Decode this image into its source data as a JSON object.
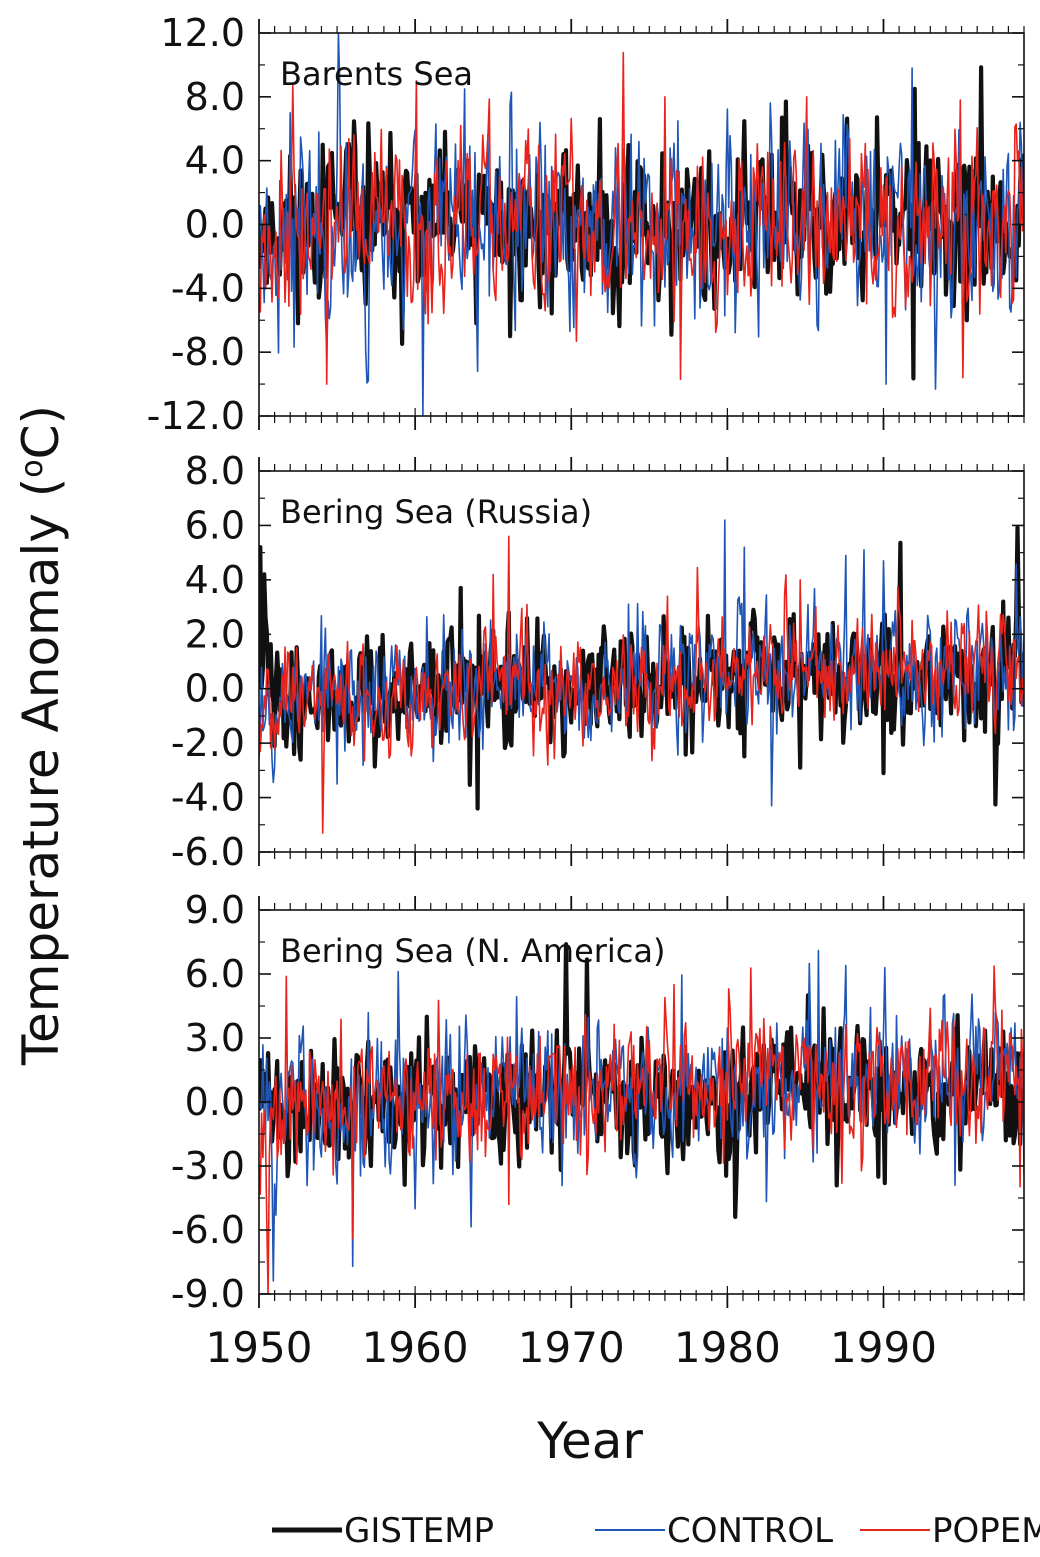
{
  "chart_data": {
    "type": "line",
    "xlabel": "Year",
    "ylabel": "Temperature Anomaly (",
    "ylabel_sup": "o",
    "ylabel_unit": "C)",
    "x_range": [
      1950,
      1999
    ],
    "x_ticks": [
      "1950",
      "1960",
      "1970",
      "1980",
      "1990"
    ],
    "legend": {
      "placement": "bottom-right",
      "entries": [
        {
          "name": "GISTEMP",
          "color": "#111111"
        },
        {
          "name": "CONTROL",
          "color": "#1f56b5"
        },
        {
          "name": "POPEM",
          "color": "#e8231c"
        }
      ]
    },
    "panels": [
      {
        "title": "Barents Sea",
        "ylim": [
          -12,
          12
        ],
        "y_ticks": [
          "12.0",
          "8.0",
          "4.0",
          "0.0",
          "-4.0",
          "-8.0",
          "-12.0"
        ],
        "series": [
          {
            "name": "GISTEMP",
            "amp": 2.2,
            "trend": 0.0,
            "seed": 11,
            "spikes": [
              [
                1954.1,
                5.0
              ],
              [
                1963.9,
                -6.2
              ],
              [
                1966.1,
                -7.0
              ],
              [
                1983.5,
                6.7
              ],
              [
                1995.3,
                -6.0
              ],
              [
                1992.0,
                8.5
              ]
            ]
          },
          {
            "name": "CONTROL",
            "amp": 2.8,
            "trend": 0.0,
            "seed": 23,
            "spikes": [
              [
                1957.0,
                -9.8
              ],
              [
                1964.0,
                -9.2
              ],
              [
                1990.2,
                -10.0
              ],
              [
                1991.8,
                9.8
              ],
              [
                1963.2,
                8.5
              ],
              [
                1952.0,
                7.0
              ]
            ]
          },
          {
            "name": "POPEM",
            "amp": 2.5,
            "trend": 0.0,
            "seed": 37,
            "spikes": [
              [
                1954.3,
                -10.0
              ],
              [
                1952.2,
                8.7
              ],
              [
                1960.1,
                9.0
              ],
              [
                1977.0,
                -9.7
              ],
              [
                1995.1,
                -9.6
              ],
              [
                1976.0,
                8.0
              ],
              [
                1985.1,
                8.0
              ]
            ]
          }
        ]
      },
      {
        "title": "Bering Sea (Russia)",
        "ylim": [
          -6,
          8
        ],
        "y_ticks": [
          "8.0",
          "6.0",
          "4.0",
          "2.0",
          "0.0",
          "-2.0",
          "-4.0",
          "-6.0"
        ],
        "series": [
          {
            "name": "GISTEMP",
            "amp": 1.0,
            "trend": 0.012,
            "seed": 41,
            "spikes": [
              [
                1950.1,
                5.2
              ],
              [
                1962.9,
                3.7
              ],
              [
                1964.0,
                -4.4
              ],
              [
                1984.7,
                -2.9
              ],
              [
                1990.0,
                -3.1
              ],
              [
                1997.7,
                3.2
              ]
            ]
          },
          {
            "name": "CONTROL",
            "amp": 1.1,
            "trend": 0.022,
            "seed": 53,
            "spikes": [
              [
                1955.0,
                -3.5
              ],
              [
                1979.8,
                6.2
              ],
              [
                1981.1,
                5.2
              ],
              [
                1990.0,
                4.7
              ],
              [
                1987.6,
                4.9
              ]
            ]
          },
          {
            "name": "POPEM",
            "amp": 0.9,
            "trend": 0.02,
            "seed": 67,
            "spikes": [
              [
                1954.1,
                -5.3
              ],
              [
                1965.0,
                4.2
              ],
              [
                1966.0,
                5.6
              ],
              [
                1976.2,
                3.4
              ],
              [
                1984.7,
                4.0
              ]
            ]
          }
        ]
      },
      {
        "title": "Bering Sea (N. America)",
        "ylim": [
          -9,
          9
        ],
        "y_ticks": [
          "9.0",
          "6.0",
          "3.0",
          "0.0",
          "-3.0",
          "-6.0",
          "-9.0"
        ],
        "series": [
          {
            "name": "GISTEMP",
            "amp": 1.3,
            "trend": 0.015,
            "seed": 71,
            "spikes": [
              [
                1952.3,
                -2.8
              ],
              [
                1985.2,
                5.0
              ],
              [
                1989.7,
                -3.5
              ],
              [
                1990.1,
                -3.8
              ],
              [
                1997.7,
                3.3
              ]
            ]
          },
          {
            "name": "CONTROL",
            "amp": 1.5,
            "trend": 0.03,
            "seed": 83,
            "spikes": [
              [
                1956.0,
                -7.7
              ],
              [
                1951.1,
                -5.3
              ],
              [
                1960.0,
                -5.0
              ],
              [
                1985.8,
                7.1
              ],
              [
                1987.6,
                6.4
              ],
              [
                1994.6,
                -3.9
              ]
            ]
          },
          {
            "name": "POPEM",
            "amp": 1.4,
            "trend": 0.028,
            "seed": 97,
            "spikes": [
              [
                1956.0,
                -6.4
              ],
              [
                1966.0,
                -4.8
              ],
              [
                1976.0,
                4.9
              ],
              [
                1980.1,
                5.3
              ],
              [
                1997.6,
                4.3
              ]
            ]
          }
        ]
      }
    ]
  }
}
